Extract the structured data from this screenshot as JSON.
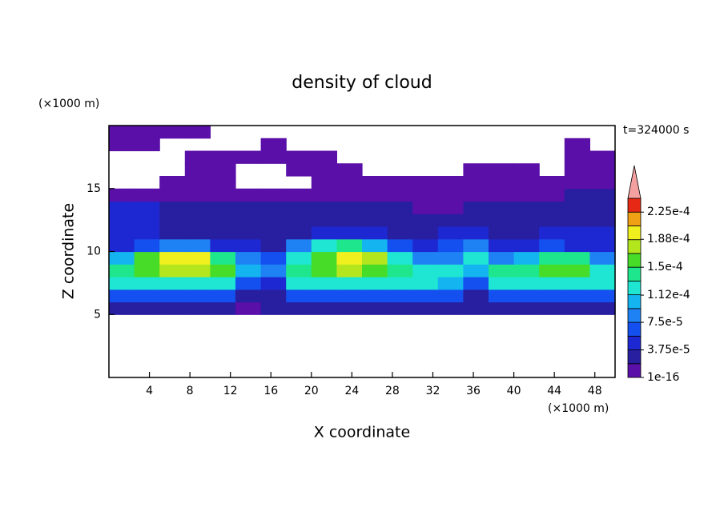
{
  "chart_data": {
    "type": "contour",
    "title": "density of cloud",
    "x_label": "X coordinate",
    "y_label": "Z coordinate",
    "x_unit": "(×1000 m)",
    "y_unit": "(×1000 m)",
    "annotation": "t=324000 s",
    "xlim": [
      0,
      50
    ],
    "ylim": [
      0,
      20
    ],
    "xticks": [
      4,
      8,
      12,
      16,
      20,
      24,
      28,
      32,
      36,
      40,
      44,
      48
    ],
    "yticks": [
      5,
      10,
      15
    ],
    "x": [
      1.25,
      3.75,
      6.25,
      8.75,
      11.25,
      13.75,
      16.25,
      18.75,
      21.25,
      23.75,
      26.25,
      28.75,
      31.25,
      33.75,
      36.25,
      38.75,
      41.25,
      43.75,
      46.25,
      48.75
    ],
    "y": [
      5.5,
      6.5,
      7.5,
      8.5,
      9.5,
      10.5,
      11.5,
      12.5,
      13.5,
      14.5,
      15.5,
      16.5,
      17.5,
      18.5,
      19.5
    ],
    "z": [
      [
        3e-05,
        3e-05,
        3e-05,
        3e-05,
        3e-05,
        1e-05,
        3e-05,
        3e-05,
        3e-05,
        3e-05,
        3e-05,
        3e-05,
        3e-05,
        3e-05,
        3e-05,
        3e-05,
        3e-05,
        3e-05,
        3e-05,
        3e-05
      ],
      [
        6.5e-05,
        6.5e-05,
        6.5e-05,
        6.5e-05,
        6.5e-05,
        3e-05,
        3e-05,
        6.5e-05,
        6.5e-05,
        6.5e-05,
        6.5e-05,
        6.5e-05,
        6.5e-05,
        6.5e-05,
        3e-05,
        6.5e-05,
        6.5e-05,
        6.5e-05,
        6.5e-05,
        6.5e-05
      ],
      [
        0.00012,
        0.00012,
        0.00012,
        0.00012,
        0.00012,
        6.5e-05,
        5e-05,
        0.00012,
        0.00012,
        0.00012,
        0.00012,
        0.00012,
        0.00012,
        0.0001,
        6.5e-05,
        0.00012,
        0.00012,
        0.00012,
        0.00012,
        0.00012
      ],
      [
        0.00014,
        0.00016,
        0.00018,
        0.00018,
        0.00016,
        0.0001,
        8.5e-05,
        0.00014,
        0.00016,
        0.00018,
        0.00016,
        0.00014,
        0.00012,
        0.00012,
        0.0001,
        0.00014,
        0.00014,
        0.00016,
        0.00016,
        0.00012
      ],
      [
        0.0001,
        0.00016,
        0.0002,
        0.0002,
        0.00014,
        8.5e-05,
        6.5e-05,
        0.00012,
        0.00016,
        0.0002,
        0.00018,
        0.00012,
        8.5e-05,
        8.5e-05,
        0.00012,
        8.5e-05,
        0.0001,
        0.00014,
        0.00014,
        8.5e-05
      ],
      [
        5e-05,
        6.5e-05,
        8.5e-05,
        8.5e-05,
        5e-05,
        5e-05,
        3e-05,
        8.5e-05,
        0.00012,
        0.00014,
        0.0001,
        6.5e-05,
        5e-05,
        6.5e-05,
        8.5e-05,
        5e-05,
        5e-05,
        6.5e-05,
        5e-05,
        5e-05
      ],
      [
        5e-05,
        5e-05,
        3e-05,
        3e-05,
        3e-05,
        3e-05,
        3e-05,
        3e-05,
        5e-05,
        5e-05,
        5e-05,
        3e-05,
        3e-05,
        5e-05,
        5e-05,
        3e-05,
        3e-05,
        5e-05,
        5e-05,
        5e-05
      ],
      [
        5e-05,
        5e-05,
        3e-05,
        3e-05,
        3e-05,
        3e-05,
        3e-05,
        3e-05,
        3e-05,
        3e-05,
        3e-05,
        3e-05,
        3e-05,
        3e-05,
        3e-05,
        3e-05,
        3e-05,
        3e-05,
        3e-05,
        3e-05
      ],
      [
        5e-05,
        5e-05,
        3e-05,
        3e-05,
        3e-05,
        3e-05,
        3e-05,
        3e-05,
        3e-05,
        3e-05,
        3e-05,
        3e-05,
        1e-05,
        1e-05,
        3e-05,
        3e-05,
        3e-05,
        3e-05,
        3e-05,
        3e-05
      ],
      [
        1e-05,
        1e-05,
        1e-05,
        1e-05,
        1e-05,
        1e-05,
        1e-05,
        1e-05,
        1e-05,
        1e-05,
        1e-05,
        1e-05,
        1e-05,
        1e-05,
        1e-05,
        1e-05,
        1e-05,
        1e-05,
        3e-05,
        3e-05
      ],
      [
        null,
        null,
        1e-05,
        1e-05,
        1e-05,
        null,
        null,
        null,
        1e-05,
        1e-05,
        1e-05,
        1e-05,
        1e-05,
        1e-05,
        1e-05,
        1e-05,
        1e-05,
        1e-05,
        1e-05,
        1e-05
      ],
      [
        null,
        null,
        null,
        1e-05,
        1e-05,
        null,
        null,
        1e-05,
        1e-05,
        1e-05,
        null,
        null,
        null,
        null,
        1e-05,
        1e-05,
        1e-05,
        null,
        1e-05,
        1e-05
      ],
      [
        null,
        null,
        null,
        1e-05,
        1e-05,
        1e-05,
        1e-05,
        1e-05,
        1e-05,
        null,
        null,
        null,
        null,
        null,
        null,
        null,
        null,
        null,
        1e-05,
        1e-05
      ],
      [
        1e-05,
        1e-05,
        null,
        null,
        null,
        null,
        1e-05,
        null,
        null,
        null,
        null,
        null,
        null,
        null,
        null,
        null,
        null,
        null,
        1e-05,
        null
      ],
      [
        1e-05,
        1e-05,
        1e-05,
        1e-05,
        null,
        null,
        null,
        null,
        null,
        null,
        null,
        null,
        null,
        null,
        null,
        null,
        null,
        null,
        null,
        null
      ]
    ],
    "colorbar": {
      "levels": [
        1e-16,
        1.875e-05,
        3.75e-05,
        5.625e-05,
        7.5e-05,
        9.375e-05,
        0.0001125,
        0.00013125,
        0.00015,
        0.00016875,
        0.0001875,
        0.00020625,
        0.000225,
        0.00024375
      ],
      "colors": [
        "#5a0fa8",
        "#281ea0",
        "#1e28d2",
        "#1450f0",
        "#1e82f5",
        "#14b4f0",
        "#1ee6d2",
        "#1ee68c",
        "#46dc28",
        "#b4e61e",
        "#f0f01e",
        "#f0a014",
        "#e62814"
      ],
      "over_color": "#f5a0a0",
      "ticks": [
        1e-16,
        {
          "value": 3.75e-05,
          "label": "3.75e-5"
        },
        {
          "value": 7.5e-05,
          "label": "7.5e-5"
        },
        {
          "value": 0.000112,
          "label": "1.12e-4"
        },
        {
          "value": 0.00015,
          "label": "1.5e-4"
        },
        {
          "value": 0.000188,
          "label": "1.88e-4"
        },
        {
          "value": 0.000225,
          "label": "2.25e-4"
        }
      ]
    }
  }
}
